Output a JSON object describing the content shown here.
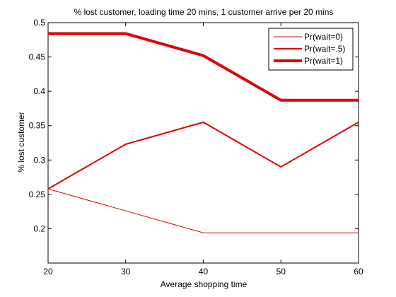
{
  "chart_data": {
    "type": "line",
    "title": "% lost customer, loading time 20 mins, 1 customer arrive per 20 mins",
    "xlabel": "Average shopping time",
    "ylabel": "% lost customer",
    "xlim": [
      20,
      60
    ],
    "ylim": [
      0.15,
      0.5
    ],
    "xticks": [
      20,
      30,
      40,
      50,
      60
    ],
    "yticks": [
      0.2,
      0.25,
      0.3,
      0.35,
      0.4,
      0.45,
      0.5
    ],
    "xtick_labels": [
      "20",
      "30",
      "40",
      "50",
      "60"
    ],
    "ytick_labels": [
      "0.2",
      "0.25",
      "0.3",
      "0.35",
      "0.4",
      "0.45",
      "0.5"
    ],
    "grid": false,
    "legend_position": "top-right",
    "x": [
      20,
      30,
      40,
      50,
      60
    ],
    "series": [
      {
        "name": "Pr(wait=0)",
        "values": [
          0.258,
          0.226,
          0.194,
          0.194,
          0.194
        ],
        "color": "#e00000",
        "weight": "thin"
      },
      {
        "name": "Pr(wait=.5)",
        "values": [
          0.258,
          0.323,
          0.355,
          0.29,
          0.355
        ],
        "color": "#e00000",
        "weight": "medium"
      },
      {
        "name": "Pr(wait=1)",
        "values": [
          0.484,
          0.484,
          0.452,
          0.387,
          0.387
        ],
        "color": "#e00000",
        "weight": "thick"
      }
    ]
  }
}
